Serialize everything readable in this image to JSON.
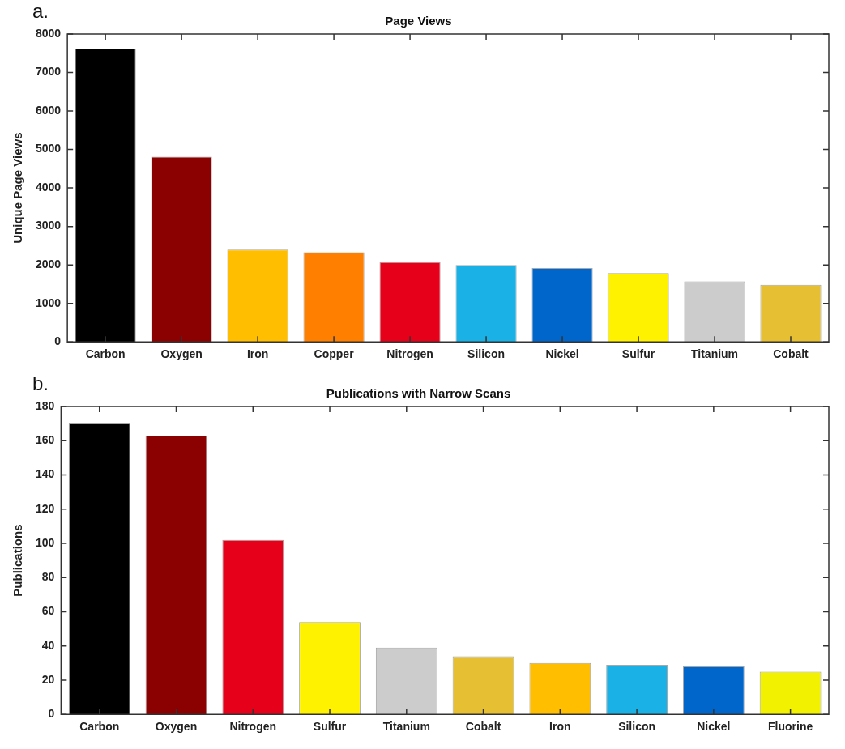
{
  "chart_data": [
    {
      "type": "bar",
      "title": "Page Views",
      "ylabel": "Unique Page Views",
      "annotations": [
        "a."
      ],
      "categories": [
        "Carbon",
        "Oxygen",
        "Iron",
        "Copper",
        "Nitrogen",
        "Silicon",
        "Nickel",
        "Sulfur",
        "Titanium",
        "Cobalt"
      ],
      "values": [
        7620,
        4810,
        2400,
        2330,
        2070,
        2000,
        1920,
        1790,
        1570,
        1480
      ],
      "colors": [
        "#000000",
        "#8b0000",
        "#ffbf00",
        "#ff8000",
        "#e6001a",
        "#1ab2e6",
        "#0066cc",
        "#fff200",
        "#cccccc",
        "#e6bf33"
      ],
      "ylim": [
        0,
        8000
      ],
      "yticks": [
        0,
        1000,
        2000,
        3000,
        4000,
        5000,
        6000,
        7000,
        8000
      ],
      "grid": false,
      "legend": false
    },
    {
      "type": "bar",
      "title": "Publications with Narrow Scans",
      "ylabel": "Publications",
      "annotations": [
        "b."
      ],
      "categories": [
        "Carbon",
        "Oxygen",
        "Nitrogen",
        "Sulfur",
        "Titanium",
        "Cobalt",
        "Iron",
        "Silicon",
        "Nickel",
        "Fluorine"
      ],
      "values": [
        170,
        163,
        102,
        54,
        39,
        34,
        30,
        29,
        28,
        25
      ],
      "colors": [
        "#000000",
        "#8b0000",
        "#e6001a",
        "#fff200",
        "#cccccc",
        "#e6bf33",
        "#ffbf00",
        "#1ab2e6",
        "#0066cc",
        "#f2f200"
      ],
      "ylim": [
        0,
        180
      ],
      "yticks": [
        0,
        20,
        40,
        60,
        80,
        100,
        120,
        140,
        160,
        180
      ],
      "grid": false,
      "legend": false
    }
  ]
}
